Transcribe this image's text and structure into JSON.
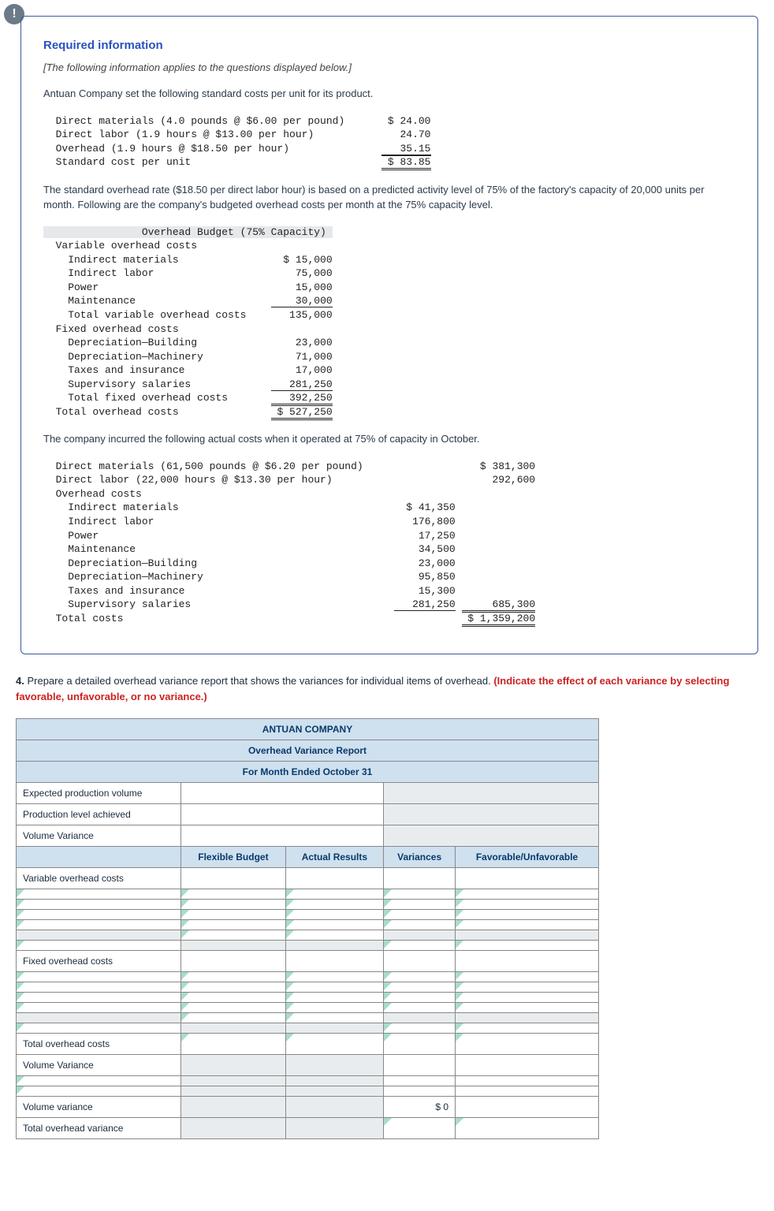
{
  "alert_icon": "!",
  "required_info_heading": "Required information",
  "applies_note": "[The following information applies to the questions displayed below.]",
  "intro_para": "Antuan Company set the following standard costs per unit for its product.",
  "std_costs": {
    "rows": [
      {
        "label": "Direct materials (4.0 pounds @ $6.00 per pound)",
        "value": "$ 24.00"
      },
      {
        "label": "Direct labor (1.9 hours @ $13.00 per hour)",
        "value": "24.70"
      },
      {
        "label": "Overhead (1.9 hours @ $18.50 per hour)",
        "value": "35.15",
        "underline": true
      }
    ],
    "total_label": "Standard cost per unit",
    "total_value": "$ 83.85"
  },
  "overhead_rate_para": "The standard overhead rate ($18.50 per direct labor hour) is based on a predicted activity level of 75% of the factory's capacity of 20,000 units per month. Following are the company's budgeted overhead costs per month at the 75% capacity level.",
  "budget": {
    "header": "Overhead Budget (75% Capacity)",
    "var_label": "Variable overhead costs",
    "var_rows": [
      {
        "label": "Indirect materials",
        "value": "$ 15,000"
      },
      {
        "label": "Indirect labor",
        "value": "75,000"
      },
      {
        "label": "Power",
        "value": "15,000"
      },
      {
        "label": "Maintenance",
        "value": "30,000",
        "underline": true
      }
    ],
    "var_total_label": "Total variable overhead costs",
    "var_total_value": "135,000",
    "fix_label": "Fixed overhead costs",
    "fix_rows": [
      {
        "label": "Depreciation—Building",
        "value": "23,000"
      },
      {
        "label": "Depreciation—Machinery",
        "value": "71,000"
      },
      {
        "label": "Taxes and insurance",
        "value": "17,000"
      },
      {
        "label": "Supervisory salaries",
        "value": "281,250",
        "underline": true
      }
    ],
    "fix_total_label": "Total fixed overhead costs",
    "fix_total_value": "392,250",
    "grand_label": "Total overhead costs",
    "grand_value": "$ 527,250"
  },
  "actual_para": "The company incurred the following actual costs when it operated at 75% of capacity in October.",
  "actual": {
    "top": [
      {
        "label": "Direct materials (61,500 pounds @ $6.20 per pound)",
        "col2": "",
        "col3": "$ 381,300"
      },
      {
        "label": "Direct labor (22,000 hours @ $13.30 per hour)",
        "col2": "",
        "col3": "292,600"
      }
    ],
    "oh_label": "Overhead costs",
    "oh_rows": [
      {
        "label": "Indirect materials",
        "col2": "$ 41,350"
      },
      {
        "label": "Indirect labor",
        "col2": "176,800"
      },
      {
        "label": "Power",
        "col2": "17,250"
      },
      {
        "label": "Maintenance",
        "col2": "34,500"
      },
      {
        "label": "Depreciation—Building",
        "col2": "23,000"
      },
      {
        "label": "Depreciation—Machinery",
        "col2": "95,850"
      },
      {
        "label": "Taxes and insurance",
        "col2": "15,300"
      },
      {
        "label": "Supervisory salaries",
        "col2": "281,250",
        "col3": "685,300",
        "underline2": true,
        "underline3": true
      }
    ],
    "total_label": "Total costs",
    "total_value": "$ 1,359,200"
  },
  "question": {
    "num": "4.",
    "text": "Prepare a detailed overhead variance report that shows the variances for individual items of overhead. ",
    "red": "(Indicate the effect of each variance by selecting favorable, unfavorable, or no variance.)"
  },
  "answer_table": {
    "title": "ANTUAN COMPANY",
    "subtitle1": "Overhead Variance Report",
    "subtitle2": "For Month Ended October 31",
    "top_rows": [
      "Expected production volume",
      "Production level achieved",
      "Volume Variance"
    ],
    "col_headers": [
      "Flexible Budget",
      "Actual Results",
      "Variances",
      "Favorable/Unfavorable"
    ],
    "section1": "Variable overhead costs",
    "section2": "Fixed overhead costs",
    "totals_row": "Total overhead costs",
    "vol_var_label": "Volume Variance",
    "vol_var_row": "Volume variance",
    "vol_var_value": "$                0",
    "total_ov_var": "Total overhead variance",
    "blank_rows_per_section": 6,
    "colors": {
      "header_bg": "#cfe0ef",
      "header_text": "#083a6b",
      "border": "#888",
      "tri": "#2a7"
    }
  }
}
